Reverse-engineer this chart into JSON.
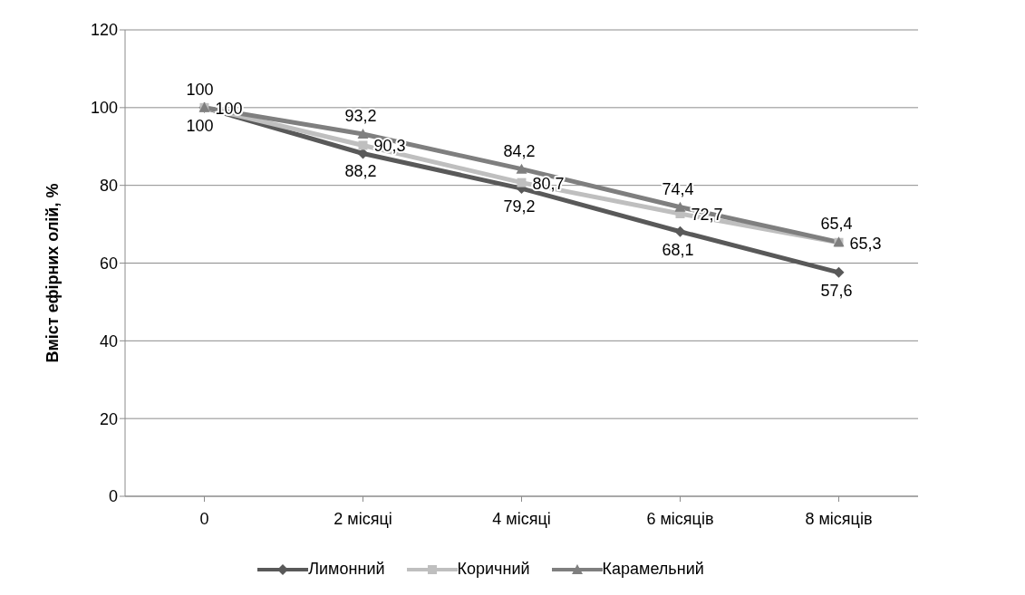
{
  "chart_data": {
    "type": "line",
    "ylabel": "Вміст ефірних олій, %",
    "categories": [
      "0",
      "2 місяці",
      "4 місяці",
      "6 місяців",
      "8 місяців"
    ],
    "series": [
      {
        "name": "Лимонний",
        "color": "#595959",
        "marker": "diamond",
        "values": [
          100,
          88.2,
          79.2,
          68.1,
          57.6
        ],
        "value_labels": [
          "100",
          "88,2",
          "79,2",
          "68,1",
          "57,6"
        ]
      },
      {
        "name": "Коричний",
        "color": "#bfbfbf",
        "marker": "square",
        "values": [
          100,
          90.3,
          80.7,
          72.7,
          65.3
        ],
        "value_labels": [
          "100",
          "90,3",
          "80,7",
          "72,7",
          "65,3"
        ]
      },
      {
        "name": "Карамельний",
        "color": "#7f7f7f",
        "marker": "triangle",
        "values": [
          100,
          93.2,
          84.2,
          74.4,
          65.4
        ],
        "value_labels": [
          "100",
          "93,2",
          "84,2",
          "74,4",
          "65,4"
        ]
      }
    ],
    "ylim": [
      0,
      120
    ],
    "yticks": [
      0,
      20,
      40,
      60,
      80,
      100,
      120
    ],
    "grid": "y",
    "legend": "bottom"
  }
}
